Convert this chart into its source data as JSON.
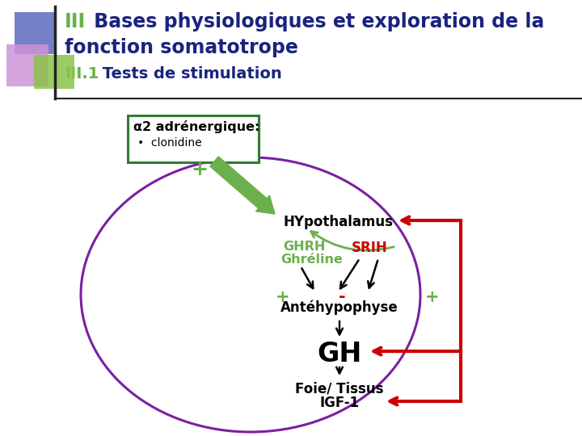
{
  "title_III": "III",
  "title_main1": " Bases physiologiques et exploration de la",
  "title_main2": "fonction somatotrope",
  "title_sub_num": "III.1",
  "title_sub": " Tests de stimulation",
  "color_III": "#6ab04c",
  "color_main": "#1a237e",
  "bg_color": "#ffffff",
  "box_label": "α2 adrénergique:",
  "box_sublabel": "clonidine",
  "box_color": "#2e7d32",
  "hypothalamus_label": "HYpothalamus",
  "ghrh_label": "GHRH",
  "ghreline_label": "Ghréline",
  "srih_label": "SRIH",
  "antehypo_label": "Antéhypophyse",
  "gh_label": "GH",
  "foie_label": "Foie/ Tissus",
  "igf_label": "IGF-1",
  "plus1_label": "+",
  "minus_label": "-",
  "plus2_label": "+",
  "arrow_green": "#6ab04c",
  "arrow_black": "#000000",
  "arrow_red": "#cc0000",
  "text_green": "#6ab04c",
  "text_red": "#cc0000",
  "text_black": "#000000",
  "ellipse_color": "#7b1fa2",
  "square_blue": "#5c6bc0",
  "square_pink": "#ce93d8",
  "square_green": "#8bc34a",
  "line_color": "#222222",
  "title_fontsize": 17,
  "sub_fontsize": 14,
  "body_fontsize": 11,
  "gh_fontsize": 24
}
